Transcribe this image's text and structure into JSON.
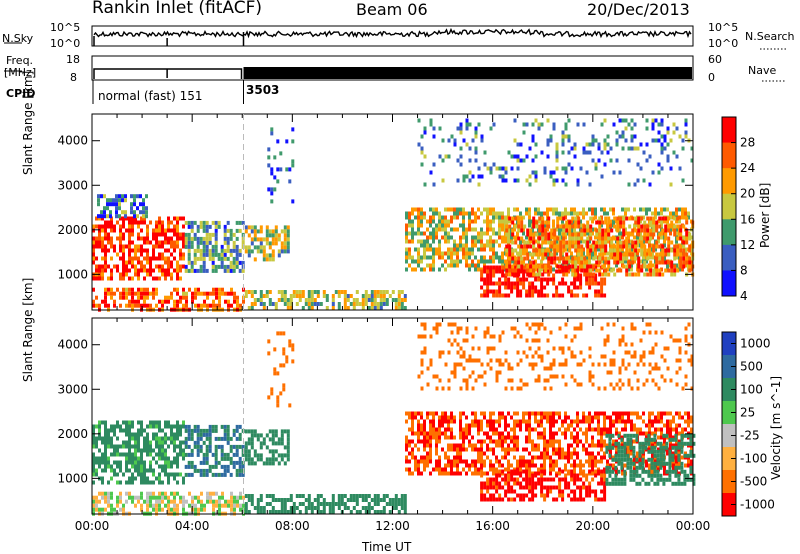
{
  "header": {
    "station": "Rankin Inlet (fitACF)",
    "beam": "Beam 06",
    "date": "20/Dec/2013"
  },
  "top_panels": {
    "nsky_label": "N.Sky",
    "nsky_ticks": [
      "10^5",
      "10^0"
    ],
    "nsearch_label": "N.Search",
    "nsearch_ticks": [
      "10^5",
      "10^0"
    ],
    "freq_label_1": "Freq.",
    "freq_label_2": "[MHz]",
    "freq_ticks": [
      "18",
      "8"
    ],
    "nave_label": "Nave",
    "nave_ticks": [
      "60",
      "0"
    ],
    "cpid_label": "CPID",
    "cpid_segments": [
      {
        "label": "normal (fast) 151",
        "start_hour": 0,
        "end_hour": 6.05
      },
      {
        "label": "3503",
        "start_hour": 6.05,
        "end_hour": 24
      }
    ]
  },
  "chart_data": [
    {
      "type": "heatmap",
      "title": "",
      "xlabel": "",
      "ylabel": "Slant Range [km]",
      "ylim": [
        200,
        4600
      ],
      "xlim_hours": [
        0,
        24
      ],
      "y_ticks": [
        1000,
        2000,
        3000,
        4000
      ],
      "colorbar_label": "Power [dB]",
      "colorbar_ticks": [
        "28",
        "24",
        "20",
        "16",
        "12",
        "8",
        "4"
      ],
      "colorbar_range": [
        0,
        30
      ],
      "colors": [
        "#1010ff",
        "#3a5ec0",
        "#3f9a6c",
        "#c8c840",
        "#ff9a00",
        "#ff5a00",
        "#ff0000"
      ],
      "echo_regions": [
        {
          "t0": 0.0,
          "t1": 3.7,
          "r0": 900,
          "r1": 2300,
          "level": 26
        },
        {
          "t0": 0.2,
          "t1": 2.2,
          "r0": 2300,
          "r1": 2800,
          "level": 8
        },
        {
          "t0": 0.0,
          "t1": 6.0,
          "r0": 250,
          "r1": 700,
          "level": 24
        },
        {
          "t0": 3.7,
          "t1": 6.0,
          "r0": 1100,
          "r1": 2200,
          "level": 10
        },
        {
          "t0": 6.1,
          "t1": 7.8,
          "r0": 1300,
          "r1": 2100,
          "level": 14
        },
        {
          "t0": 6.1,
          "t1": 12.5,
          "r0": 250,
          "r1": 650,
          "level": 14
        },
        {
          "t0": 12.5,
          "t1": 24.0,
          "r0": 1100,
          "r1": 2500,
          "level": 16
        },
        {
          "t0": 15.5,
          "t1": 20.5,
          "r0": 500,
          "r1": 1200,
          "level": 29
        },
        {
          "t0": 16.5,
          "t1": 24.0,
          "r0": 1000,
          "r1": 2300,
          "level": 22
        },
        {
          "t0": 13.0,
          "t1": 24.0,
          "r0": 3000,
          "r1": 4500,
          "level": 8
        },
        {
          "t0": 7.0,
          "t1": 8.0,
          "r0": 2600,
          "r1": 4300,
          "level": 6
        }
      ]
    },
    {
      "type": "heatmap",
      "title": "",
      "xlabel": "Time UT",
      "ylabel": "Slant Range [km]",
      "ylim": [
        200,
        4600
      ],
      "xlim_hours": [
        0,
        24
      ],
      "y_ticks": [
        1000,
        2000,
        3000,
        4000
      ],
      "x_ticks": [
        "00:00",
        "04:00",
        "08:00",
        "12:00",
        "16:00",
        "20:00",
        "00:00"
      ],
      "colorbar_label": "Velocity [m s^-1]",
      "colorbar_ticks": [
        "1000",
        "500",
        "100",
        "25",
        "-25",
        "-100",
        "-500",
        "-1000"
      ],
      "colors": [
        "#2040c0",
        "#2e6aa0",
        "#2e8a60",
        "#4ec84e",
        "#c0c0c0",
        "#ffb040",
        "#ff7000",
        "#ff0000"
      ],
      "echo_regions": [
        {
          "t0": 0.0,
          "t1": 3.7,
          "r0": 900,
          "r1": 2300,
          "level": 100
        },
        {
          "t0": 0.0,
          "t1": 6.0,
          "r0": 250,
          "r1": 700,
          "level": 0
        },
        {
          "t0": 3.7,
          "t1": 6.0,
          "r0": 1100,
          "r1": 2200,
          "level": 300
        },
        {
          "t0": 6.1,
          "t1": 7.8,
          "r0": 1300,
          "r1": 2100,
          "level": 200
        },
        {
          "t0": 6.1,
          "t1": 12.5,
          "r0": 250,
          "r1": 650,
          "level": 200
        },
        {
          "t0": 12.5,
          "t1": 24.0,
          "r0": 1100,
          "r1": 2500,
          "level": -300
        },
        {
          "t0": 15.5,
          "t1": 20.5,
          "r0": 500,
          "r1": 1200,
          "level": -400
        },
        {
          "t0": 20.5,
          "t1": 24.0,
          "r0": 900,
          "r1": 2000,
          "level": 200
        },
        {
          "t0": 13.0,
          "t1": 24.0,
          "r0": 3000,
          "r1": 4500,
          "level": -150
        },
        {
          "t0": 7.0,
          "t1": 8.0,
          "r0": 2600,
          "r1": 4300,
          "level": -150
        }
      ]
    }
  ]
}
